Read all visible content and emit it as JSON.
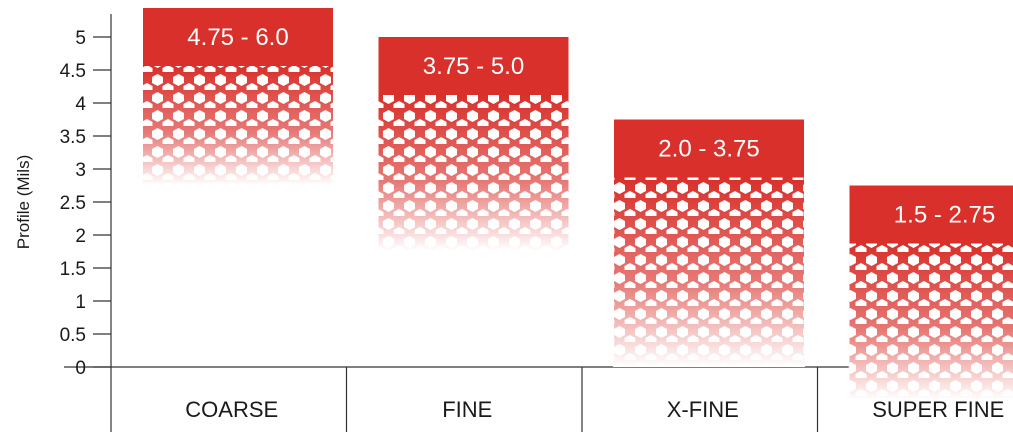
{
  "chart_data": {
    "type": "bar",
    "title": "",
    "xlabel": "",
    "ylabel": "Profile (Mils)",
    "ylim": [
      0,
      5
    ],
    "yticks": [
      0,
      0.5,
      1,
      1.5,
      2,
      2.5,
      3,
      3.5,
      4,
      4.5,
      5
    ],
    "ytick_labels": [
      "0",
      "0.5",
      "1",
      "1.5",
      "2",
      "2.5",
      "3",
      "3.5",
      "4",
      "4.5",
      "5"
    ],
    "categories": [
      "COARSE",
      "FINE",
      "X-FINE",
      "SUPER FINE"
    ],
    "ranges": [
      {
        "category": "COARSE",
        "low": 4.75,
        "high": 6.0,
        "label": "4.75 - 6.0"
      },
      {
        "category": "FINE",
        "low": 3.75,
        "high": 5.0,
        "label": "3.75 - 5.0"
      },
      {
        "category": "X-FINE",
        "low": 2.0,
        "high": 3.75,
        "label": "2.0 - 3.75"
      },
      {
        "category": "SUPER FINE",
        "low": 1.5,
        "high": 2.75,
        "label": "1.5 - 2.75"
      }
    ],
    "grid": false,
    "legend": "none",
    "colors": {
      "bar": "#d9302b",
      "text_on_bar": "#ffffff",
      "axis": "#333333"
    }
  }
}
